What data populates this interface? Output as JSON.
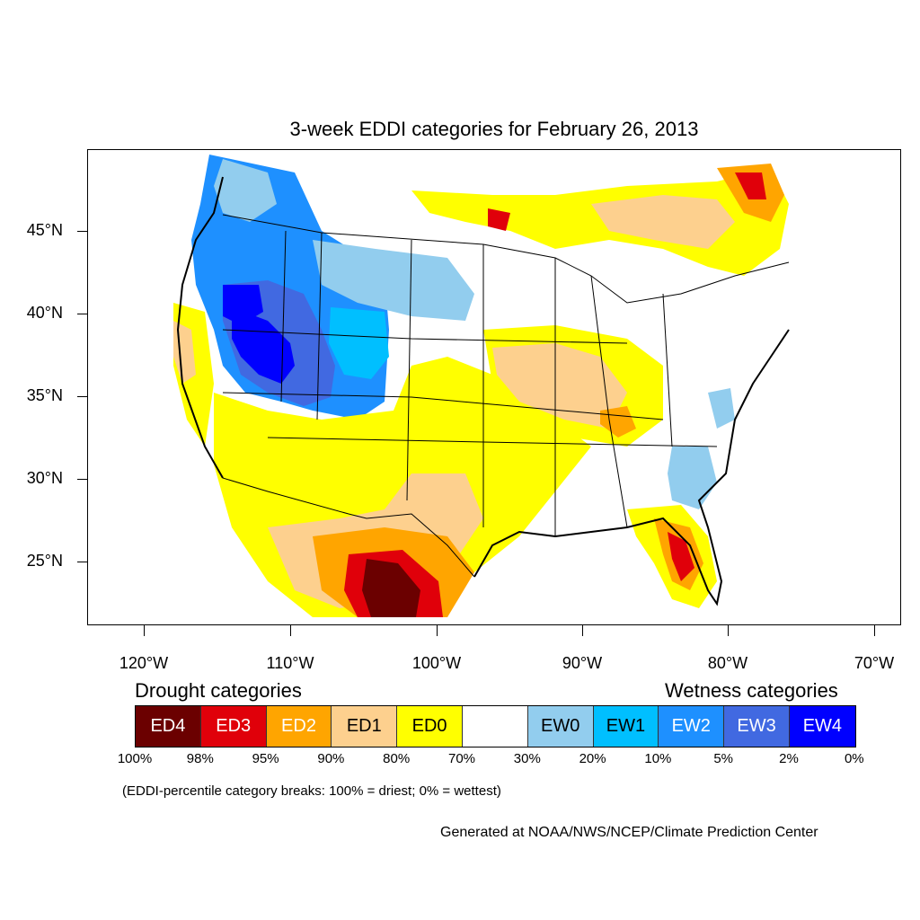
{
  "title": "3-week EDDI categories for February 26, 2013",
  "lat_labels": [
    "45°N",
    "40°N",
    "35°N",
    "30°N",
    "25°N"
  ],
  "lon_labels": [
    "120°W",
    "110°W",
    "100°W",
    "90°W",
    "80°W",
    "70°W"
  ],
  "legend": {
    "drought_heading": "Drought categories",
    "wetness_heading": "Wetness categories",
    "categories": [
      {
        "label": "ED4",
        "color": "#6b0000",
        "text_color": "#ffffff"
      },
      {
        "label": "ED3",
        "color": "#e0000a",
        "text_color": "#ffffff"
      },
      {
        "label": "ED2",
        "color": "#ffa500",
        "text_color": "#ffffff"
      },
      {
        "label": "ED1",
        "color": "#fdd08e",
        "text_color": "#000000"
      },
      {
        "label": "ED0",
        "color": "#ffff00",
        "text_color": "#000000"
      },
      {
        "label": "",
        "color": "#ffffff",
        "text_color": "#000000"
      },
      {
        "label": "EW0",
        "color": "#92cdee",
        "text_color": "#000000"
      },
      {
        "label": "EW1",
        "color": "#00bfff",
        "text_color": "#000000"
      },
      {
        "label": "EW2",
        "color": "#1e90ff",
        "text_color": "#ffffff"
      },
      {
        "label": "EW3",
        "color": "#4169e1",
        "text_color": "#ffffff"
      },
      {
        "label": "EW4",
        "color": "#0000ff",
        "text_color": "#ffffff"
      }
    ],
    "percentiles": [
      "100%",
      "98%",
      "95%",
      "90%",
      "80%",
      "70%",
      "30%",
      "20%",
      "10%",
      "5%",
      "2%",
      "0%"
    ]
  },
  "note": "(EDDI-percentile category breaks: 100% = driest; 0% = wettest)",
  "credit": "Generated at NOAA/NWS/NCEP/Climate Prediction Center"
}
